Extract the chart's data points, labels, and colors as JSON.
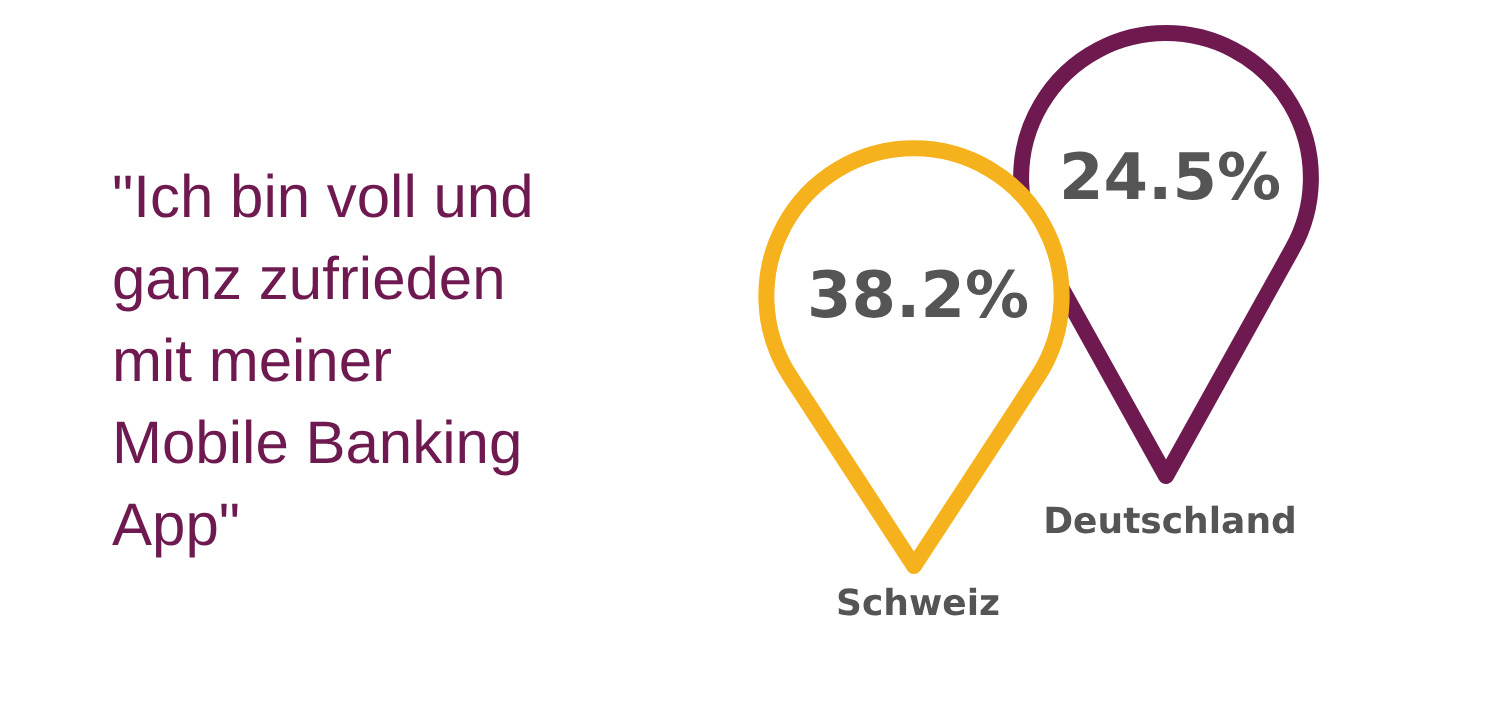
{
  "chart_data": {
    "type": "other",
    "title": "\"Ich bin voll und ganz zufrieden mit meiner Mobile Banking App\"",
    "categories": [
      "Schweiz",
      "Deutschland"
    ],
    "values": [
      38.2,
      24.5
    ],
    "value_labels": [
      "38.2%",
      "24.5%"
    ],
    "colors": [
      "#f5b21c",
      "#6e1a50"
    ]
  }
}
